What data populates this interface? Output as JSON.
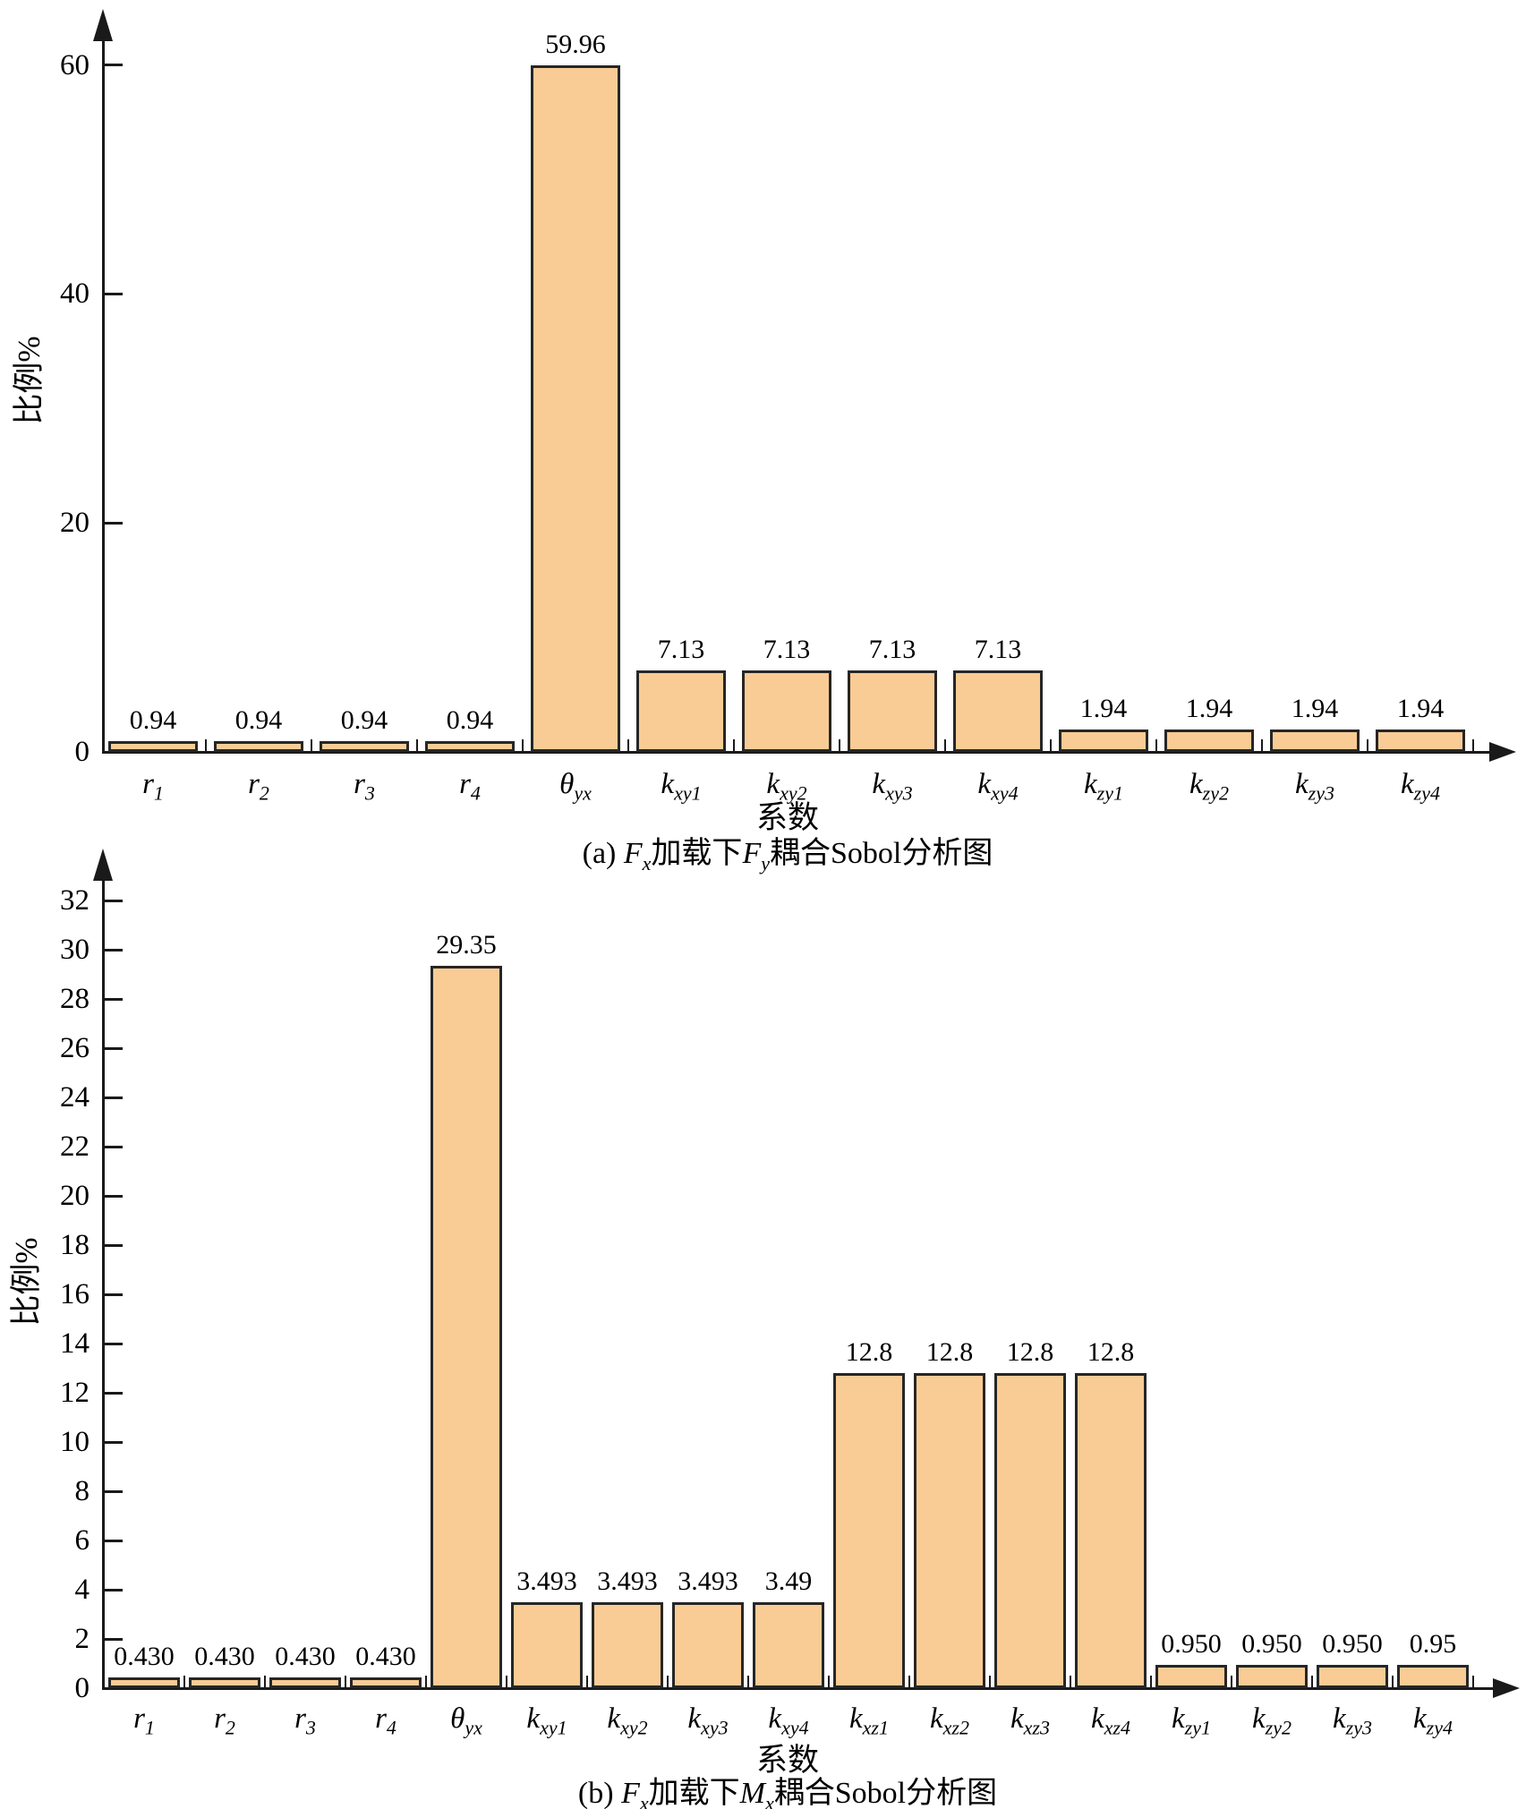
{
  "figure": {
    "background": "#ffffff",
    "bar_fill": "#F9CC95",
    "bar_border": "#262626",
    "axis_color": "#1a1a1a",
    "text_color": "#000000"
  },
  "chart_data": [
    {
      "type": "bar",
      "title": "(a) Fx加载下Fy耦合Sobol分析图",
      "caption_segments": [
        {
          "t": "(a) "
        },
        {
          "v": "F",
          "s": "x"
        },
        {
          "t": "加载下"
        },
        {
          "v": "F",
          "s": "y"
        },
        {
          "t": "耦合Sobol分析图"
        }
      ],
      "xlabel": "系数",
      "ylabel": "比例%",
      "categories": [
        "r1",
        "r2",
        "r3",
        "r4",
        "θyx",
        "kxy1",
        "kxy2",
        "kxy3",
        "kxy4",
        "kzy1",
        "kzy2",
        "kzy3",
        "kzy4"
      ],
      "values": [
        0.94,
        0.94,
        0.94,
        0.94,
        59.96,
        7.13,
        7.13,
        7.13,
        7.13,
        1.94,
        1.94,
        1.94,
        1.94
      ],
      "value_labels": [
        "0.94",
        "0.94",
        "0.94",
        "0.94",
        "59.96",
        "7.13",
        "7.13",
        "7.13",
        "7.13",
        "1.94",
        "1.94",
        "1.94",
        "1.94"
      ],
      "y_ticks": [
        0,
        20,
        40,
        60
      ],
      "ylim": [
        0,
        64
      ],
      "grid": false,
      "legend": "none"
    },
    {
      "type": "bar",
      "title": "(b) Fx加载下Mx耦合Sobol分析图",
      "caption_segments": [
        {
          "t": "(b) "
        },
        {
          "v": "F",
          "s": "x"
        },
        {
          "t": "加载下"
        },
        {
          "v": "M",
          "s": "x"
        },
        {
          "t": "耦合Sobol分析图"
        }
      ],
      "xlabel": "系数",
      "ylabel": "比例%",
      "categories": [
        "r1",
        "r2",
        "r3",
        "r4",
        "θyx",
        "kxy1",
        "kxy2",
        "kxy3",
        "kxy4",
        "kxz1",
        "kxz2",
        "kxz3",
        "kxz4",
        "kzy1",
        "kzy2",
        "kzy3",
        "kzy4"
      ],
      "values": [
        0.43,
        0.43,
        0.43,
        0.43,
        29.35,
        3.493,
        3.493,
        3.493,
        3.49,
        12.8,
        12.8,
        12.8,
        12.8,
        0.95,
        0.95,
        0.95,
        0.95
      ],
      "value_labels": [
        "0.430",
        "0.430",
        "0.430",
        "0.430",
        "29.35",
        "3.493",
        "3.493",
        "3.493",
        "3.49",
        "12.8",
        "12.8",
        "12.8",
        "12.8",
        "0.950",
        "0.950",
        "0.950",
        "0.95"
      ],
      "y_ticks": [
        0,
        2,
        4,
        6,
        8,
        10,
        12,
        14,
        16,
        18,
        20,
        22,
        24,
        26,
        28,
        30,
        32
      ],
      "ylim": [
        0,
        34
      ],
      "grid": false,
      "legend": "none"
    }
  ]
}
